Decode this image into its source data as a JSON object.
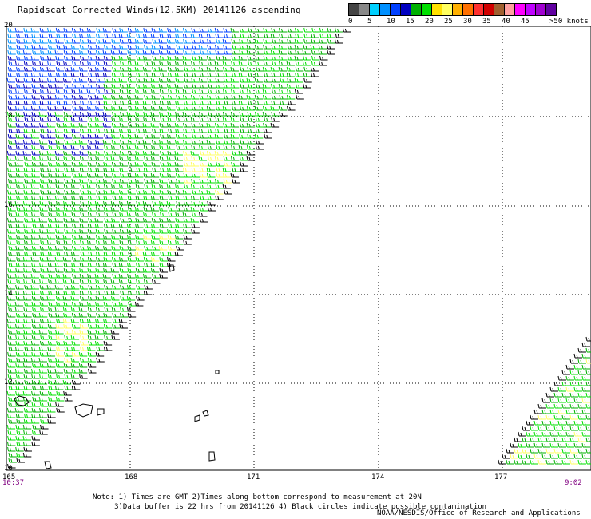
{
  "title": "Rapidscat Corrected Winds(12.5KM) 20141126 ascending",
  "legend": {
    "colors": [
      "#444444",
      "#888888",
      "#00d0ff",
      "#0090ff",
      "#0040ff",
      "#0000c0",
      "#00b000",
      "#00e000",
      "#ffe000",
      "#ffff60",
      "#ffb000",
      "#ff7000",
      "#ff3030",
      "#d00000",
      "#a06030",
      "#ffa0a0",
      "#ff00ff",
      "#c000ff",
      "#a000d0",
      "#6000a0"
    ],
    "labels": [
      "0",
      "5",
      "10",
      "15",
      "20",
      "25",
      "30",
      "35",
      "40",
      "45",
      ">50 knots"
    ]
  },
  "map": {
    "lat_labels": [
      "20",
      "18",
      "16",
      "14",
      "12",
      "10"
    ],
    "lon_labels": [
      "165",
      "168",
      "171",
      "174",
      "177"
    ],
    "time_start": "10:37",
    "time_end": "9:02"
  },
  "notes": {
    "line1": "Note: 1) Times are GMT 2)Times along bottom correspond to measurement at 20N",
    "line2": "3)Data buffer is 22 hrs from 20141126 4) Black circles indicate possible contamination",
    "credit": "NOAA/NESDIS/Office of Research and Applications"
  }
}
